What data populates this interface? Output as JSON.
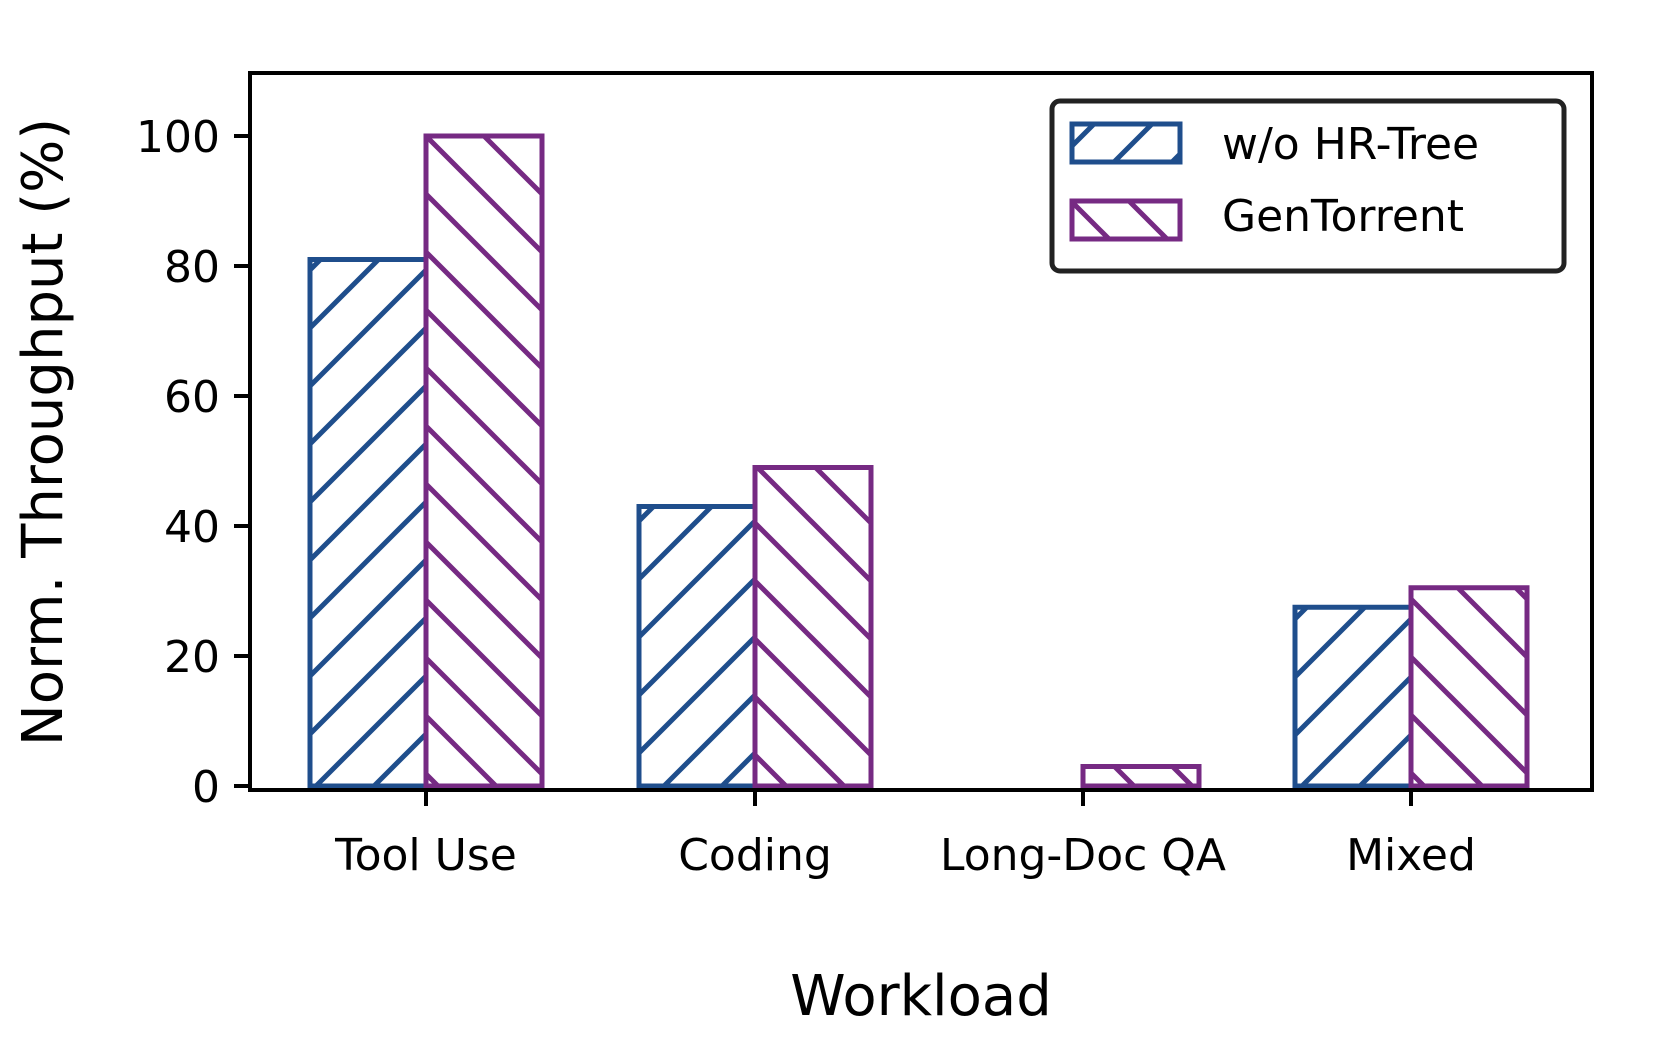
{
  "chart_data": {
    "type": "bar",
    "title": "",
    "xlabel": "Workload",
    "ylabel": "Norm. Throughput (%)",
    "categories": [
      "Tool Use",
      "Coding",
      "Long-Doc QA",
      "Mixed"
    ],
    "series": [
      {
        "name": "w/o HR-Tree",
        "values": [
          81,
          43,
          0,
          27.5
        ],
        "color": "#1f4e8c",
        "hatch": "forward-diagonal"
      },
      {
        "name": "GenTorrent",
        "values": [
          100,
          49,
          3,
          30.5
        ],
        "color": "#762a83",
        "hatch": "back-diagonal"
      }
    ],
    "ylim": [
      0,
      110
    ],
    "yticks": [
      0,
      20,
      40,
      60,
      80,
      100
    ],
    "grid": false,
    "legend": "top-right"
  }
}
